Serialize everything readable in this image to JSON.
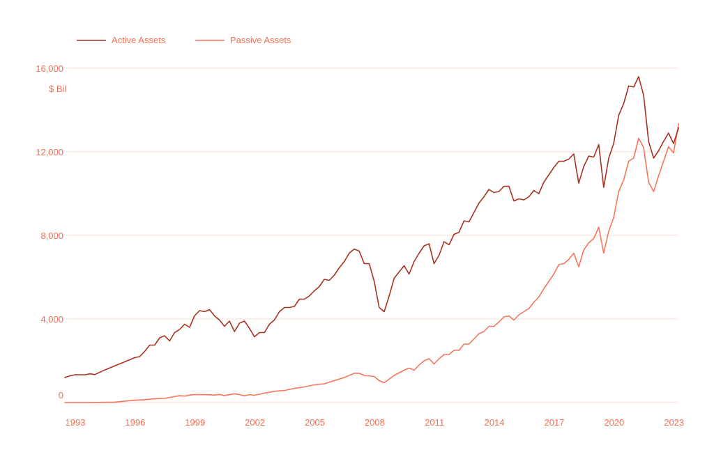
{
  "colors": {
    "active": "#a8321f",
    "passive": "#f5765a",
    "text": "#f26f52",
    "grid": "#f9dcd0"
  },
  "chart_data": {
    "type": "line",
    "title": "",
    "xlabel": "",
    "ylabel": "$ Bil",
    "ylim": [
      0,
      16000
    ],
    "xlim": [
      1993.0,
      2023.5
    ],
    "grid": true,
    "legend_position": "top-left",
    "yticks": [
      0,
      4000,
      8000,
      12000,
      16000
    ],
    "ytick_labels": [
      "0",
      "4,000",
      "8,000",
      "12,000",
      "16,000"
    ],
    "xticks": [
      1993,
      1996,
      1999,
      2002,
      2005,
      2008,
      2011,
      2014,
      2017,
      2020,
      2023
    ],
    "xtick_labels": [
      "1993",
      "1996",
      "1999",
      "2002",
      "2005",
      "2008",
      "2011",
      "2014",
      "2017",
      "2020",
      "2023"
    ],
    "series": [
      {
        "name": "Active Assets",
        "color": "#a8321f",
        "points": [
          [
            1993.0,
            1200
          ],
          [
            1993.25,
            1280
          ],
          [
            1993.5,
            1330
          ],
          [
            1993.75,
            1330
          ],
          [
            1994.0,
            1330
          ],
          [
            1994.25,
            1380
          ],
          [
            1994.5,
            1340
          ],
          [
            1995.0,
            1560
          ],
          [
            1995.5,
            1760
          ],
          [
            1996.0,
            1950
          ],
          [
            1996.5,
            2150
          ],
          [
            1996.75,
            2200
          ],
          [
            1997.0,
            2450
          ],
          [
            1997.25,
            2750
          ],
          [
            1997.5,
            2750
          ],
          [
            1997.75,
            3100
          ],
          [
            1998.0,
            3200
          ],
          [
            1998.25,
            2950
          ],
          [
            1998.5,
            3350
          ],
          [
            1998.75,
            3500
          ],
          [
            1999.0,
            3750
          ],
          [
            1999.25,
            3600
          ],
          [
            1999.5,
            4150
          ],
          [
            1999.75,
            4400
          ],
          [
            2000.0,
            4350
          ],
          [
            2000.25,
            4450
          ],
          [
            2000.5,
            4150
          ],
          [
            2000.75,
            3950
          ],
          [
            2001.0,
            3650
          ],
          [
            2001.25,
            3900
          ],
          [
            2001.5,
            3400
          ],
          [
            2001.75,
            3800
          ],
          [
            2002.0,
            3900
          ],
          [
            2002.25,
            3550
          ],
          [
            2002.5,
            3150
          ],
          [
            2002.75,
            3350
          ],
          [
            2003.0,
            3350
          ],
          [
            2003.25,
            3750
          ],
          [
            2003.5,
            3950
          ],
          [
            2003.75,
            4350
          ],
          [
            2004.0,
            4550
          ],
          [
            2004.25,
            4550
          ],
          [
            2004.5,
            4600
          ],
          [
            2004.75,
            4950
          ],
          [
            2005.0,
            4950
          ],
          [
            2005.25,
            5100
          ],
          [
            2005.5,
            5350
          ],
          [
            2005.75,
            5550
          ],
          [
            2006.0,
            5900
          ],
          [
            2006.25,
            5850
          ],
          [
            2006.5,
            6100
          ],
          [
            2006.75,
            6450
          ],
          [
            2007.0,
            6750
          ],
          [
            2007.25,
            7150
          ],
          [
            2007.5,
            7350
          ],
          [
            2007.75,
            7250
          ],
          [
            2008.0,
            6650
          ],
          [
            2008.25,
            6650
          ],
          [
            2008.5,
            5800
          ],
          [
            2008.75,
            4550
          ],
          [
            2009.0,
            4350
          ],
          [
            2009.25,
            5100
          ],
          [
            2009.5,
            5950
          ],
          [
            2009.75,
            6250
          ],
          [
            2010.0,
            6550
          ],
          [
            2010.25,
            6150
          ],
          [
            2010.5,
            6750
          ],
          [
            2010.75,
            7150
          ],
          [
            2011.0,
            7500
          ],
          [
            2011.25,
            7600
          ],
          [
            2011.5,
            6650
          ],
          [
            2011.75,
            7050
          ],
          [
            2012.0,
            7700
          ],
          [
            2012.25,
            7550
          ],
          [
            2012.5,
            8050
          ],
          [
            2012.75,
            8150
          ],
          [
            2013.0,
            8700
          ],
          [
            2013.25,
            8650
          ],
          [
            2013.5,
            9100
          ],
          [
            2013.75,
            9550
          ],
          [
            2014.0,
            9850
          ],
          [
            2014.25,
            10200
          ],
          [
            2014.5,
            10050
          ],
          [
            2014.75,
            10100
          ],
          [
            2015.0,
            10350
          ],
          [
            2015.25,
            10350
          ],
          [
            2015.5,
            9650
          ],
          [
            2015.75,
            9750
          ],
          [
            2016.0,
            9700
          ],
          [
            2016.25,
            9850
          ],
          [
            2016.5,
            10150
          ],
          [
            2016.75,
            10000
          ],
          [
            2017.0,
            10550
          ],
          [
            2017.25,
            10900
          ],
          [
            2017.5,
            11250
          ],
          [
            2017.75,
            11550
          ],
          [
            2018.0,
            11550
          ],
          [
            2018.25,
            11650
          ],
          [
            2018.5,
            11900
          ],
          [
            2018.75,
            10500
          ],
          [
            2019.0,
            11300
          ],
          [
            2019.25,
            11800
          ],
          [
            2019.5,
            11750
          ],
          [
            2019.75,
            12350
          ],
          [
            2020.0,
            10300
          ],
          [
            2020.25,
            11700
          ],
          [
            2020.5,
            12400
          ],
          [
            2020.75,
            13750
          ],
          [
            2021.0,
            14300
          ],
          [
            2021.25,
            15150
          ],
          [
            2021.5,
            15100
          ],
          [
            2021.75,
            15600
          ],
          [
            2022.0,
            14700
          ],
          [
            2022.25,
            12500
          ],
          [
            2022.5,
            11700
          ],
          [
            2022.75,
            12050
          ],
          [
            2023.0,
            12500
          ],
          [
            2023.25,
            12900
          ],
          [
            2023.5,
            12400
          ],
          [
            2023.75,
            13150
          ]
        ]
      },
      {
        "name": "Passive Assets",
        "color": "#f5765a",
        "points": [
          [
            1993.0,
            0
          ],
          [
            1994.0,
            0
          ],
          [
            1995.0,
            10
          ],
          [
            1995.5,
            20
          ],
          [
            1996.0,
            70
          ],
          [
            1996.5,
            110
          ],
          [
            1997.0,
            140
          ],
          [
            1997.5,
            180
          ],
          [
            1998.0,
            200
          ],
          [
            1998.5,
            290
          ],
          [
            1998.75,
            330
          ],
          [
            1999.0,
            310
          ],
          [
            1999.25,
            360
          ],
          [
            1999.5,
            380
          ],
          [
            2000.0,
            380
          ],
          [
            2000.5,
            360
          ],
          [
            2000.75,
            390
          ],
          [
            2001.0,
            340
          ],
          [
            2001.5,
            420
          ],
          [
            2001.75,
            380
          ],
          [
            2002.0,
            330
          ],
          [
            2002.25,
            380
          ],
          [
            2002.5,
            350
          ],
          [
            2002.75,
            400
          ],
          [
            2003.0,
            450
          ],
          [
            2003.5,
            540
          ],
          [
            2004.0,
            580
          ],
          [
            2004.5,
            680
          ],
          [
            2005.0,
            750
          ],
          [
            2005.5,
            850
          ],
          [
            2006.0,
            900
          ],
          [
            2006.5,
            1050
          ],
          [
            2007.0,
            1200
          ],
          [
            2007.5,
            1400
          ],
          [
            2007.75,
            1400
          ],
          [
            2008.0,
            1300
          ],
          [
            2008.5,
            1250
          ],
          [
            2008.75,
            1050
          ],
          [
            2009.0,
            950
          ],
          [
            2009.5,
            1300
          ],
          [
            2010.0,
            1550
          ],
          [
            2010.25,
            1650
          ],
          [
            2010.5,
            1550
          ],
          [
            2010.75,
            1800
          ],
          [
            2011.0,
            2000
          ],
          [
            2011.25,
            2100
          ],
          [
            2011.5,
            1850
          ],
          [
            2011.75,
            2100
          ],
          [
            2012.0,
            2300
          ],
          [
            2012.25,
            2300
          ],
          [
            2012.5,
            2500
          ],
          [
            2012.75,
            2500
          ],
          [
            2013.0,
            2800
          ],
          [
            2013.25,
            2800
          ],
          [
            2013.5,
            3050
          ],
          [
            2013.75,
            3300
          ],
          [
            2014.0,
            3400
          ],
          [
            2014.25,
            3650
          ],
          [
            2014.5,
            3650
          ],
          [
            2014.75,
            3850
          ],
          [
            2015.0,
            4100
          ],
          [
            2015.25,
            4150
          ],
          [
            2015.5,
            3950
          ],
          [
            2015.75,
            4200
          ],
          [
            2016.0,
            4350
          ],
          [
            2016.25,
            4500
          ],
          [
            2016.5,
            4800
          ],
          [
            2016.75,
            5050
          ],
          [
            2017.0,
            5450
          ],
          [
            2017.25,
            5800
          ],
          [
            2017.5,
            6150
          ],
          [
            2017.75,
            6600
          ],
          [
            2018.0,
            6650
          ],
          [
            2018.25,
            6850
          ],
          [
            2018.5,
            7150
          ],
          [
            2018.75,
            6500
          ],
          [
            2019.0,
            7300
          ],
          [
            2019.25,
            7650
          ],
          [
            2019.5,
            7850
          ],
          [
            2019.75,
            8400
          ],
          [
            2020.0,
            7150
          ],
          [
            2020.25,
            8200
          ],
          [
            2020.5,
            8850
          ],
          [
            2020.75,
            10100
          ],
          [
            2021.0,
            10650
          ],
          [
            2021.25,
            11550
          ],
          [
            2021.5,
            11700
          ],
          [
            2021.75,
            12650
          ],
          [
            2022.0,
            12200
          ],
          [
            2022.25,
            10550
          ],
          [
            2022.5,
            10100
          ],
          [
            2022.75,
            10850
          ],
          [
            2023.0,
            11550
          ],
          [
            2023.25,
            12250
          ],
          [
            2023.5,
            11950
          ],
          [
            2023.75,
            13350
          ]
        ]
      }
    ]
  }
}
